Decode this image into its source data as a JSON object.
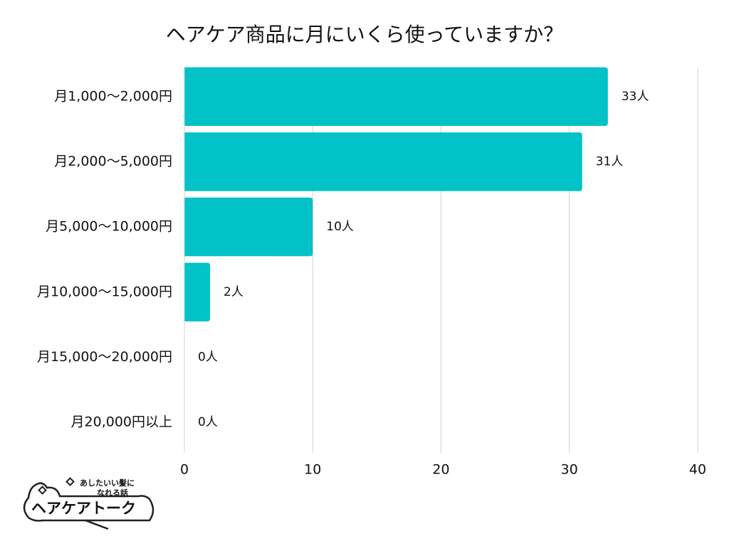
{
  "chart_data": {
    "type": "barh",
    "title": "ヘアケア商品に月にいくら使っていますか？",
    "categories": [
      "月1,000〜2,000円",
      "月2,000〜5,000円",
      "月5,000〜10,000円",
      "月10,000〜15,000円",
      "月15,000〜20,000円",
      "月20,000円以上"
    ],
    "values": [
      33,
      31,
      10,
      2,
      0,
      0
    ],
    "value_labels": [
      "33人",
      "31人",
      "10人",
      "2人",
      "0人",
      "0人"
    ],
    "color": "#00c2c7",
    "xlim": [
      0,
      40
    ],
    "xticks": [
      0,
      10,
      20,
      30,
      40
    ],
    "grid": true
  },
  "logo": {
    "tagline": [
      "あしたいい髪に",
      "なれる話"
    ],
    "name": "ヘアケアトーク"
  }
}
